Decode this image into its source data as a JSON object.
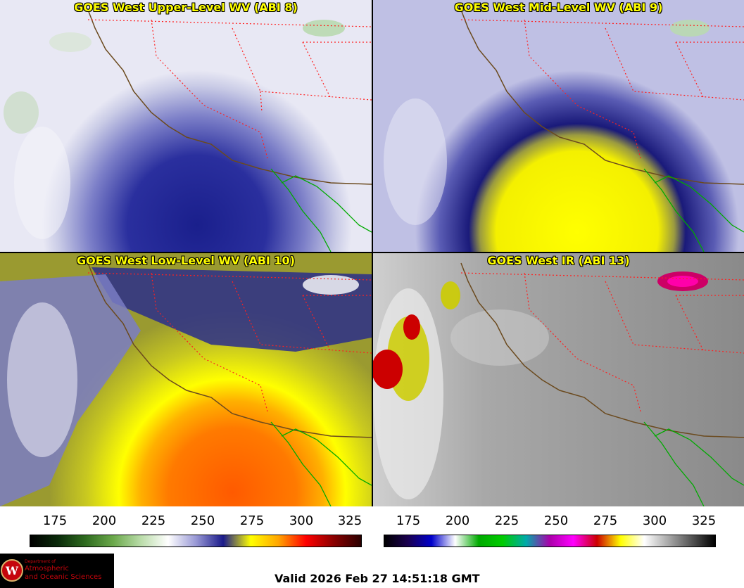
{
  "panels": [
    {
      "title": "GOES West Upper-Level WV (ABI 8)",
      "style": "upper"
    },
    {
      "title": "GOES West Mid-Level WV (ABI 9)",
      "style": "mid"
    },
    {
      "title": "GOES West Low-Level WV (ABI 10)",
      "style": "low"
    },
    {
      "title": "GOES West IR (ABI 13)",
      "style": "ir"
    }
  ],
  "wv_scale": {
    "ticks": [
      "175",
      "200",
      "225",
      "250",
      "275",
      "300",
      "325"
    ],
    "colors": [
      "#000000",
      "#0a2a0a",
      "#2e6b1f",
      "#6aa84a",
      "#b9dca8",
      "#ffffff",
      "#9a9ad6",
      "#1a1a8a",
      "#ffff00",
      "#ffa500",
      "#ff0000",
      "#8b0000",
      "#2a0000"
    ]
  },
  "ir_scale": {
    "ticks": [
      "175",
      "200",
      "225",
      "250",
      "275",
      "300",
      "325"
    ],
    "colors": [
      "#000000",
      "#1a0050",
      "#0000cc",
      "#ffffff",
      "#00aa00",
      "#00cc00",
      "#00aaaa",
      "#aa00aa",
      "#ff00ff",
      "#cc0000",
      "#ffff00",
      "#ffffff",
      "#aaaaaa",
      "#555555",
      "#000000"
    ]
  },
  "logo": {
    "line1": "Department of",
    "line2": "Atmospheric",
    "line3": "and Oceanic Sciences",
    "crest": "W"
  },
  "valid_text": "Valid 2026 Feb 27 14:51:18 GMT"
}
